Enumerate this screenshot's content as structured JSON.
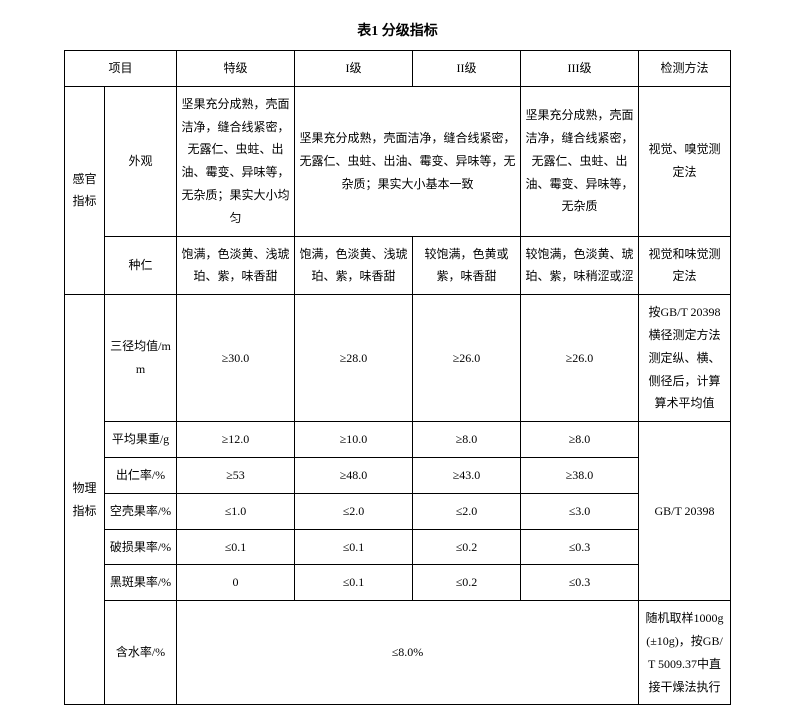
{
  "title": "表1  分级指标",
  "headers": {
    "item": "项目",
    "special": "特级",
    "grade1": "I级",
    "grade2": "II级",
    "grade3": "III级",
    "method": "检测方法"
  },
  "sensory": {
    "group": "感官指标",
    "appearance": {
      "label": "外观",
      "special": "坚果充分成熟，壳面洁净，缝合线紧密，无露仁、虫蛀、出油、霉变、异味等，无杂质；果实大小均匀",
      "g12": "坚果充分成熟，壳面洁净，缝合线紧密，无露仁、虫蛀、出油、霉变、异味等，无杂质；果实大小基本一致",
      "g3": "坚果充分成熟，壳面洁净，缝合线紧密，无露仁、虫蛀、出油、霉变、异味等，无杂质",
      "method": "视觉、嗅觉测定法"
    },
    "kernel": {
      "label": "种仁",
      "special": "饱满，色淡黄、浅琥珀、紫，味香甜",
      "g1": "饱满，色淡黄、浅琥珀、紫，味香甜",
      "g2": "较饱满，色黄或紫，味香甜",
      "g3": "较饱满，色淡黄、琥珀、紫，味稍涩或涩",
      "method": "视觉和味觉测定法"
    }
  },
  "physical": {
    "group": "物理指标",
    "diameter": {
      "label": "三径均值/mm",
      "special": "≥30.0",
      "g1": "≥28.0",
      "g2": "≥26.0",
      "g3": "≥26.0",
      "method": "按GB/T 20398横径测定方法测定纵、横、侧径后，计算算术平均值"
    },
    "weight": {
      "label": "平均果重/g",
      "special": "≥12.0",
      "g1": "≥10.0",
      "g2": "≥8.0",
      "g3": "≥8.0"
    },
    "kernel_rate": {
      "label": "出仁率/%",
      "special": "≥53",
      "g1": "≥48.0",
      "g2": "≥43.0",
      "g3": "≥38.0"
    },
    "empty_rate": {
      "label": "空壳果率/%",
      "special": "≤1.0",
      "g1": "≤2.0",
      "g2": "≤2.0",
      "g3": "≤3.0"
    },
    "damage_rate": {
      "label": "破损果率/%",
      "special": "≤0.1",
      "g1": "≤0.1",
      "g2": "≤0.2",
      "g3": "≤0.3"
    },
    "spot_rate": {
      "label": "黑斑果率/%",
      "special": "0",
      "g1": "≤0.1",
      "g2": "≤0.2",
      "g3": "≤0.3"
    },
    "method_20398": "GB/T 20398",
    "moisture": {
      "label": "含水率/%",
      "value": "≤8.0%",
      "method": "随机取样1000g(±10g)，按GB/T 5009.37中直接干燥法执行"
    }
  }
}
